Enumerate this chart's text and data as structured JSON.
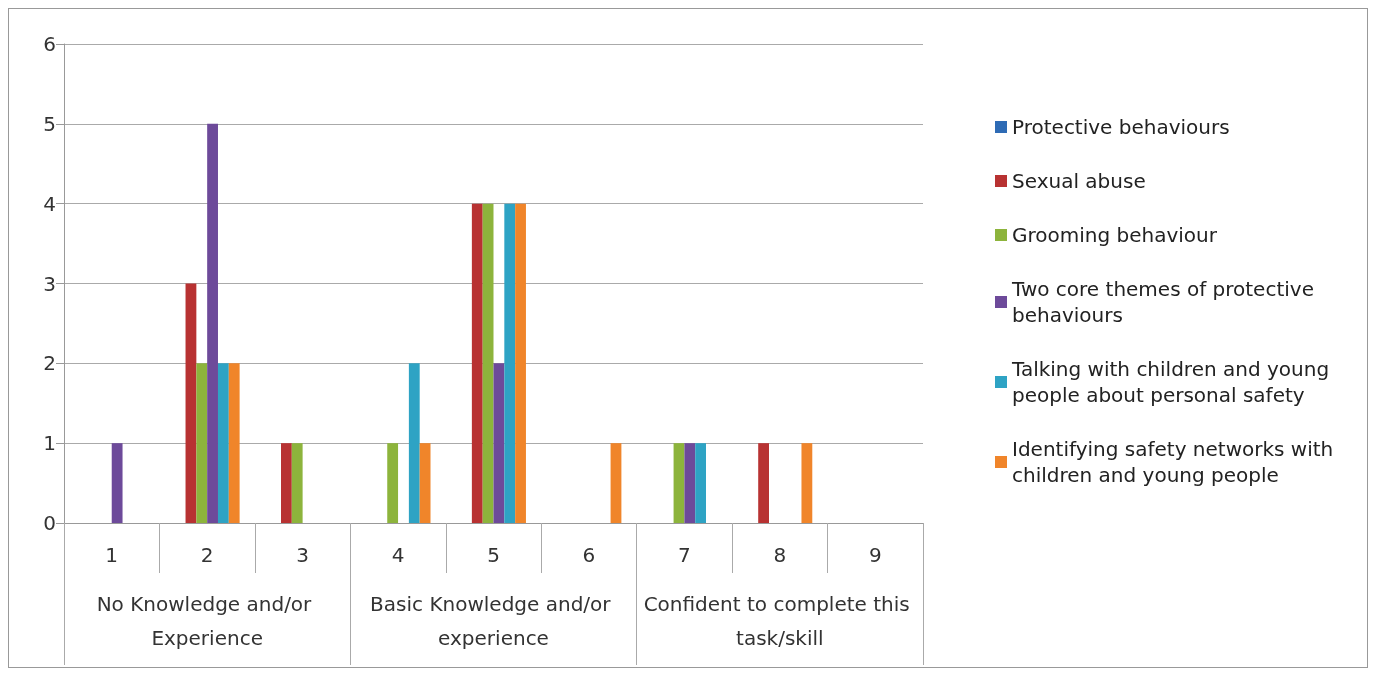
{
  "chart_data": {
    "type": "bar",
    "categories": [
      "1",
      "2",
      "3",
      "4",
      "5",
      "6",
      "7",
      "8",
      "9"
    ],
    "annotations": [
      "No Knowledge and/or Experience",
      "Basic Knowledge and/or experience",
      "Confident to complete this task/skill"
    ],
    "series": [
      {
        "name": "Protective behaviours",
        "color": "#2e6bb5",
        "values": [
          0,
          0,
          0,
          0,
          0,
          0,
          0,
          0,
          0
        ]
      },
      {
        "name": "Sexual abuse",
        "color": "#b83232",
        "values": [
          0,
          3,
          1,
          0,
          4,
          0,
          0,
          1,
          0
        ]
      },
      {
        "name": "Grooming behaviour",
        "color": "#8db43c",
        "values": [
          0,
          2,
          1,
          1,
          4,
          0,
          1,
          0,
          0
        ]
      },
      {
        "name": "Two core themes of protective behaviours",
        "color": "#6d4a9a",
        "values": [
          1,
          5,
          0,
          0,
          2,
          0,
          1,
          0,
          0
        ]
      },
      {
        "name": "Talking with children and young people about personal safety",
        "color": "#2ea3c4",
        "values": [
          0,
          2,
          0,
          2,
          4,
          0,
          1,
          0,
          0
        ]
      },
      {
        "name": "Identifying safety networks with children and young people",
        "color": "#f0852a",
        "values": [
          0,
          2,
          0,
          1,
          4,
          1,
          0,
          1,
          0
        ]
      }
    ],
    "ylim": [
      0,
      6
    ],
    "yticks": [
      0,
      1,
      2,
      3,
      4,
      5,
      6
    ],
    "grid": "y",
    "legend": "right"
  }
}
